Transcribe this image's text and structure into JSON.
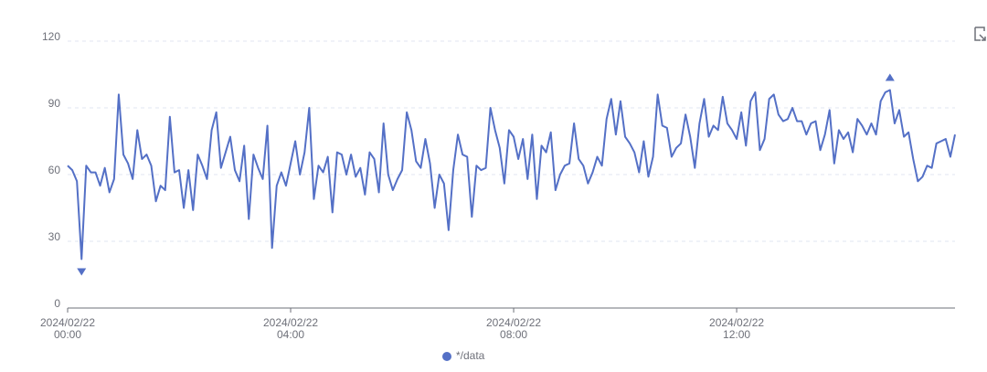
{
  "chart_data": {
    "type": "line",
    "x": [
      "2024/02/22 00:00",
      "2024/02/22 00:05",
      "2024/02/22 00:10",
      "2024/02/22 00:15",
      "2024/02/22 00:20",
      "2024/02/22 00:25",
      "2024/02/22 00:30",
      "2024/02/22 00:35",
      "2024/02/22 00:40",
      "2024/02/22 00:45",
      "2024/02/22 00:50",
      "2024/02/22 00:55",
      "2024/02/22 01:00",
      "2024/02/22 01:05",
      "2024/02/22 01:10",
      "2024/02/22 01:15",
      "2024/02/22 01:20",
      "2024/02/22 01:25",
      "2024/02/22 01:30",
      "2024/02/22 01:35",
      "2024/02/22 01:40",
      "2024/02/22 01:45",
      "2024/02/22 01:50",
      "2024/02/22 01:55",
      "2024/02/22 02:00",
      "2024/02/22 02:05",
      "2024/02/22 02:10",
      "2024/02/22 02:15",
      "2024/02/22 02:20",
      "2024/02/22 02:25",
      "2024/02/22 02:30",
      "2024/02/22 02:35",
      "2024/02/22 02:40",
      "2024/02/22 02:45",
      "2024/02/22 02:50",
      "2024/02/22 02:55",
      "2024/02/22 03:00",
      "2024/02/22 03:05",
      "2024/02/22 03:10",
      "2024/02/22 03:15",
      "2024/02/22 03:20",
      "2024/02/22 03:25",
      "2024/02/22 03:30",
      "2024/02/22 03:35",
      "2024/02/22 03:40",
      "2024/02/22 03:45",
      "2024/02/22 03:50",
      "2024/02/22 03:55",
      "2024/02/22 04:00",
      "2024/02/22 04:05",
      "2024/02/22 04:10",
      "2024/02/22 04:15",
      "2024/02/22 04:20",
      "2024/02/22 04:25",
      "2024/02/22 04:30",
      "2024/02/22 04:35",
      "2024/02/22 04:40",
      "2024/02/22 04:45",
      "2024/02/22 04:50",
      "2024/02/22 04:55",
      "2024/02/22 05:00",
      "2024/02/22 05:05",
      "2024/02/22 05:10",
      "2024/02/22 05:15",
      "2024/02/22 05:20",
      "2024/02/22 05:25",
      "2024/02/22 05:30",
      "2024/02/22 05:35",
      "2024/02/22 05:40",
      "2024/02/22 05:45",
      "2024/02/22 05:50",
      "2024/02/22 05:55",
      "2024/02/22 06:00",
      "2024/02/22 06:05",
      "2024/02/22 06:10",
      "2024/02/22 06:15",
      "2024/02/22 06:20",
      "2024/02/22 06:25",
      "2024/02/22 06:30",
      "2024/02/22 06:35",
      "2024/02/22 06:40",
      "2024/02/22 06:45",
      "2024/02/22 06:50",
      "2024/02/22 06:55",
      "2024/02/22 07:00",
      "2024/02/22 07:05",
      "2024/02/22 07:10",
      "2024/02/22 07:15",
      "2024/02/22 07:20",
      "2024/02/22 07:25",
      "2024/02/22 07:30",
      "2024/02/22 07:35",
      "2024/02/22 07:40",
      "2024/02/22 07:45",
      "2024/02/22 07:50",
      "2024/02/22 07:55",
      "2024/02/22 08:00",
      "2024/02/22 08:05",
      "2024/02/22 08:10",
      "2024/02/22 08:15",
      "2024/02/22 08:20",
      "2024/02/22 08:25",
      "2024/02/22 08:30",
      "2024/02/22 08:35",
      "2024/02/22 08:40",
      "2024/02/22 08:45",
      "2024/02/22 08:50",
      "2024/02/22 08:55",
      "2024/02/22 09:00",
      "2024/02/22 09:05",
      "2024/02/22 09:10",
      "2024/02/22 09:15",
      "2024/02/22 09:20",
      "2024/02/22 09:25",
      "2024/02/22 09:30",
      "2024/02/22 09:35",
      "2024/02/22 09:40",
      "2024/02/22 09:45",
      "2024/02/22 09:50",
      "2024/02/22 09:55",
      "2024/02/22 10:00",
      "2024/02/22 10:05",
      "2024/02/22 10:10",
      "2024/02/22 10:15",
      "2024/02/22 10:20",
      "2024/02/22 10:25",
      "2024/02/22 10:30",
      "2024/02/22 10:35",
      "2024/02/22 10:40",
      "2024/02/22 10:45",
      "2024/02/22 10:50",
      "2024/02/22 10:55",
      "2024/02/22 11:00",
      "2024/02/22 11:05",
      "2024/02/22 11:10",
      "2024/02/22 11:15",
      "2024/02/22 11:20",
      "2024/02/22 11:25",
      "2024/02/22 11:30",
      "2024/02/22 11:35",
      "2024/02/22 11:40",
      "2024/02/22 11:45",
      "2024/02/22 11:50",
      "2024/02/22 11:55",
      "2024/02/22 12:00",
      "2024/02/22 12:05",
      "2024/02/22 12:10",
      "2024/02/22 12:15",
      "2024/02/22 12:20",
      "2024/02/22 12:25",
      "2024/02/22 12:30",
      "2024/02/22 12:35",
      "2024/02/22 12:40",
      "2024/02/22 12:45",
      "2024/02/22 12:50",
      "2024/02/22 12:55",
      "2024/02/22 13:00",
      "2024/02/22 13:05",
      "2024/02/22 13:10",
      "2024/02/22 13:15",
      "2024/02/22 13:20",
      "2024/02/22 13:25",
      "2024/02/22 13:30",
      "2024/02/22 13:35",
      "2024/02/22 13:40",
      "2024/02/22 13:45",
      "2024/02/22 13:50",
      "2024/02/22 13:55",
      "2024/02/22 14:00",
      "2024/02/22 14:05",
      "2024/02/22 14:10",
      "2024/02/22 14:15",
      "2024/02/22 14:20",
      "2024/02/22 14:25",
      "2024/02/22 14:30",
      "2024/02/22 14:35",
      "2024/02/22 14:40",
      "2024/02/22 14:45",
      "2024/02/22 14:50",
      "2024/02/22 14:55",
      "2024/02/22 15:00",
      "2024/02/22 15:05",
      "2024/02/22 15:10",
      "2024/02/22 15:15",
      "2024/02/22 15:20",
      "2024/02/22 15:25",
      "2024/02/22 15:30",
      "2024/02/22 15:35",
      "2024/02/22 15:40",
      "2024/02/22 15:45",
      "2024/02/22 15:50",
      "2024/02/22 15:55"
    ],
    "series": [
      {
        "name": "*/data",
        "color": "#5470c6",
        "values": [
          64,
          62,
          57,
          22,
          64,
          61,
          61,
          55,
          63,
          52,
          58,
          96,
          69,
          65,
          58,
          80,
          67,
          69,
          64,
          48,
          55,
          53,
          86,
          61,
          62,
          45,
          62,
          44,
          69,
          64,
          58,
          80,
          88,
          63,
          70,
          77,
          62,
          57,
          73,
          40,
          69,
          63,
          58,
          82,
          27,
          55,
          61,
          55,
          65,
          75,
          60,
          70,
          90,
          49,
          64,
          61,
          68,
          43,
          70,
          69,
          60,
          69,
          59,
          63,
          51,
          70,
          67,
          52,
          83,
          60,
          53,
          58,
          62,
          88,
          80,
          66,
          63,
          76,
          65,
          45,
          60,
          56,
          35,
          62,
          78,
          69,
          68,
          41,
          64,
          62,
          63,
          90,
          80,
          72,
          56,
          80,
          77,
          67,
          76,
          58,
          78,
          49,
          73,
          70,
          79,
          53,
          60,
          64,
          65,
          83,
          67,
          64,
          56,
          61,
          68,
          64,
          85,
          94,
          78,
          93,
          77,
          74,
          70,
          61,
          75,
          59,
          68,
          96,
          82,
          81,
          68,
          72,
          74,
          87,
          77,
          63,
          83,
          94,
          77,
          82,
          80,
          95,
          83,
          80,
          76,
          88,
          73,
          93,
          97,
          71,
          76,
          94,
          96,
          87,
          84,
          85,
          90,
          84,
          84,
          78,
          83,
          84,
          71,
          78,
          89,
          65,
          80,
          76,
          79,
          70,
          85,
          82,
          78,
          83,
          78,
          93,
          97,
          98,
          83,
          89,
          77,
          79,
          67,
          57,
          59,
          64,
          63,
          74,
          75,
          76,
          68,
          78
        ]
      }
    ],
    "xlim": [
      "2024/02/22 00:00",
      "2024/02/22 15:55"
    ],
    "xticks": [
      "2024/02/22 00:00",
      "2024/02/22 04:00",
      "2024/02/22 08:00",
      "2024/02/22 12:00"
    ],
    "ylim": [
      0,
      120
    ],
    "yticks": [
      0,
      30,
      60,
      90,
      120
    ],
    "grid": true,
    "legend": "bottom"
  }
}
